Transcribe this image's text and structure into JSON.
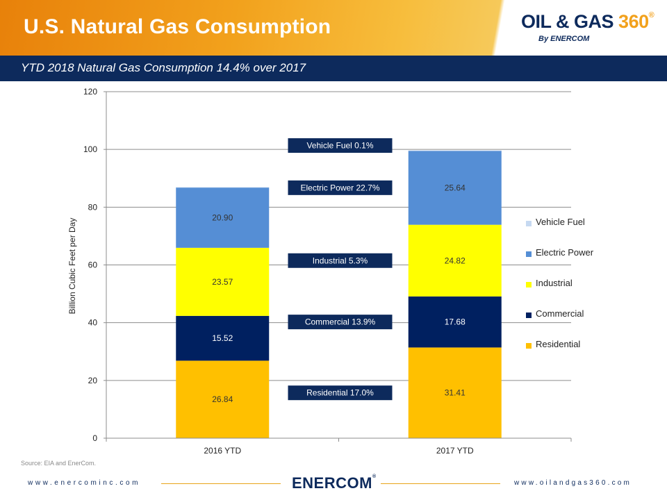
{
  "header": {
    "title": "U.S. Natural Gas Consumption",
    "subtitle": "YTD 2018 Natural Gas Consumption 14.4% over 2017",
    "logo": {
      "main": "OIL & GAS",
      "number": "360",
      "reg": "®",
      "by": "By ENERCOM"
    }
  },
  "colors": {
    "orange": "#f2a11c",
    "navy": "#0d2a5c"
  },
  "chart_data": {
    "type": "bar",
    "stacked": true,
    "categories": [
      "2016 YTD",
      "2017 YTD"
    ],
    "series": [
      {
        "name": "Residential",
        "color": "#ffc000",
        "values": [
          26.84,
          31.41
        ]
      },
      {
        "name": "Commercial",
        "color": "#002060",
        "values": [
          15.52,
          17.68
        ]
      },
      {
        "name": "Industrial",
        "color": "#ffff00",
        "values": [
          23.57,
          24.82
        ]
      },
      {
        "name": "Electric Power",
        "color": "#558ed5",
        "values": [
          20.9,
          25.64
        ]
      },
      {
        "name": "Vehicle Fuel",
        "color": "#c6d9f1",
        "values": [
          0.1,
          0.1
        ]
      }
    ],
    "value_labels": [
      [
        "26.84",
        "31.41"
      ],
      [
        "15.52",
        "17.68"
      ],
      [
        "23.57",
        "24.82"
      ],
      [
        "20.90",
        "25.64"
      ],
      [
        "",
        ""
      ]
    ],
    "growth_labels": [
      {
        "series": "Vehicle Fuel",
        "text": "Vehicle Fuel 0.1%"
      },
      {
        "series": "Electric Power",
        "text": "Electric Power 22.7%"
      },
      {
        "series": "Industrial",
        "text": "Industrial 5.3%"
      },
      {
        "series": "Commercial",
        "text": "Commercial 13.9%"
      },
      {
        "series": "Residential",
        "text": "Residential 17.0%"
      }
    ],
    "ylabel": "Billion Cubic Feet per Day",
    "xlabel": "",
    "ylim": [
      0,
      120
    ],
    "yticks": [
      0,
      20,
      40,
      60,
      80,
      100,
      120
    ],
    "grid": true,
    "legend_position": "right"
  },
  "legend": {
    "items": [
      {
        "label": "Vehicle Fuel",
        "color": "#c6d9f1"
      },
      {
        "label": "Electric Power",
        "color": "#558ed5"
      },
      {
        "label": "Industrial",
        "color": "#ffff00"
      },
      {
        "label": "Commercial",
        "color": "#002060"
      },
      {
        "label": "Residential",
        "color": "#ffc000"
      }
    ]
  },
  "footer": {
    "source": "Source: EIA and EnerCom.",
    "left_url": "www.enercominc.com",
    "right_url": "www.oilandgas360.com",
    "logo": "ENERCOM",
    "logo_reg": "®"
  }
}
